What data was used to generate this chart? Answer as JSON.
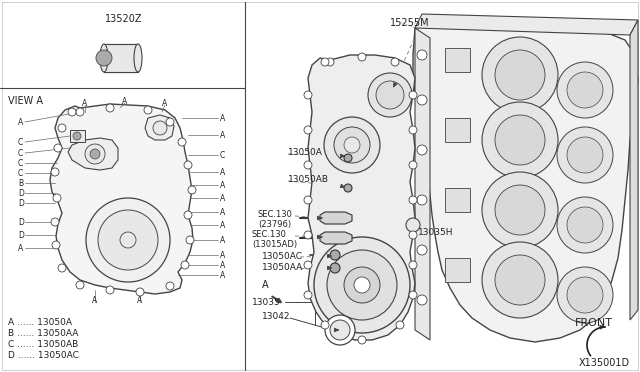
{
  "background_color": "#ffffff",
  "line_color": "#444444",
  "text_color": "#222222",
  "light_gray": "#e8e8e8",
  "mid_gray": "#cccccc",
  "dark_gray": "#aaaaaa",
  "diagram_id": "X135001D",
  "part13520Z": "13520Z",
  "view_a_label": "VIEW A",
  "label_15255M": "15255M",
  "label_13050A": "13050A",
  "label_13050AB": "13050AB",
  "label_sec130_1": "SEC.130",
  "label_sec130_1b": "(23796)",
  "label_sec130_2": "SEC.130",
  "label_sec130_2b": "(13015AD)",
  "label_13050AC": "13050AC",
  "label_13050AA": "13050AA",
  "label_A": "A",
  "label_13035": "13035",
  "label_13042": "13042",
  "label_13035H": "13035H",
  "label_FRONT": "FRONT",
  "legend": [
    "A ...... 13050A",
    "B ...... 13050AA",
    "C ...... 13050AB",
    "D ...... 13050AC"
  ]
}
